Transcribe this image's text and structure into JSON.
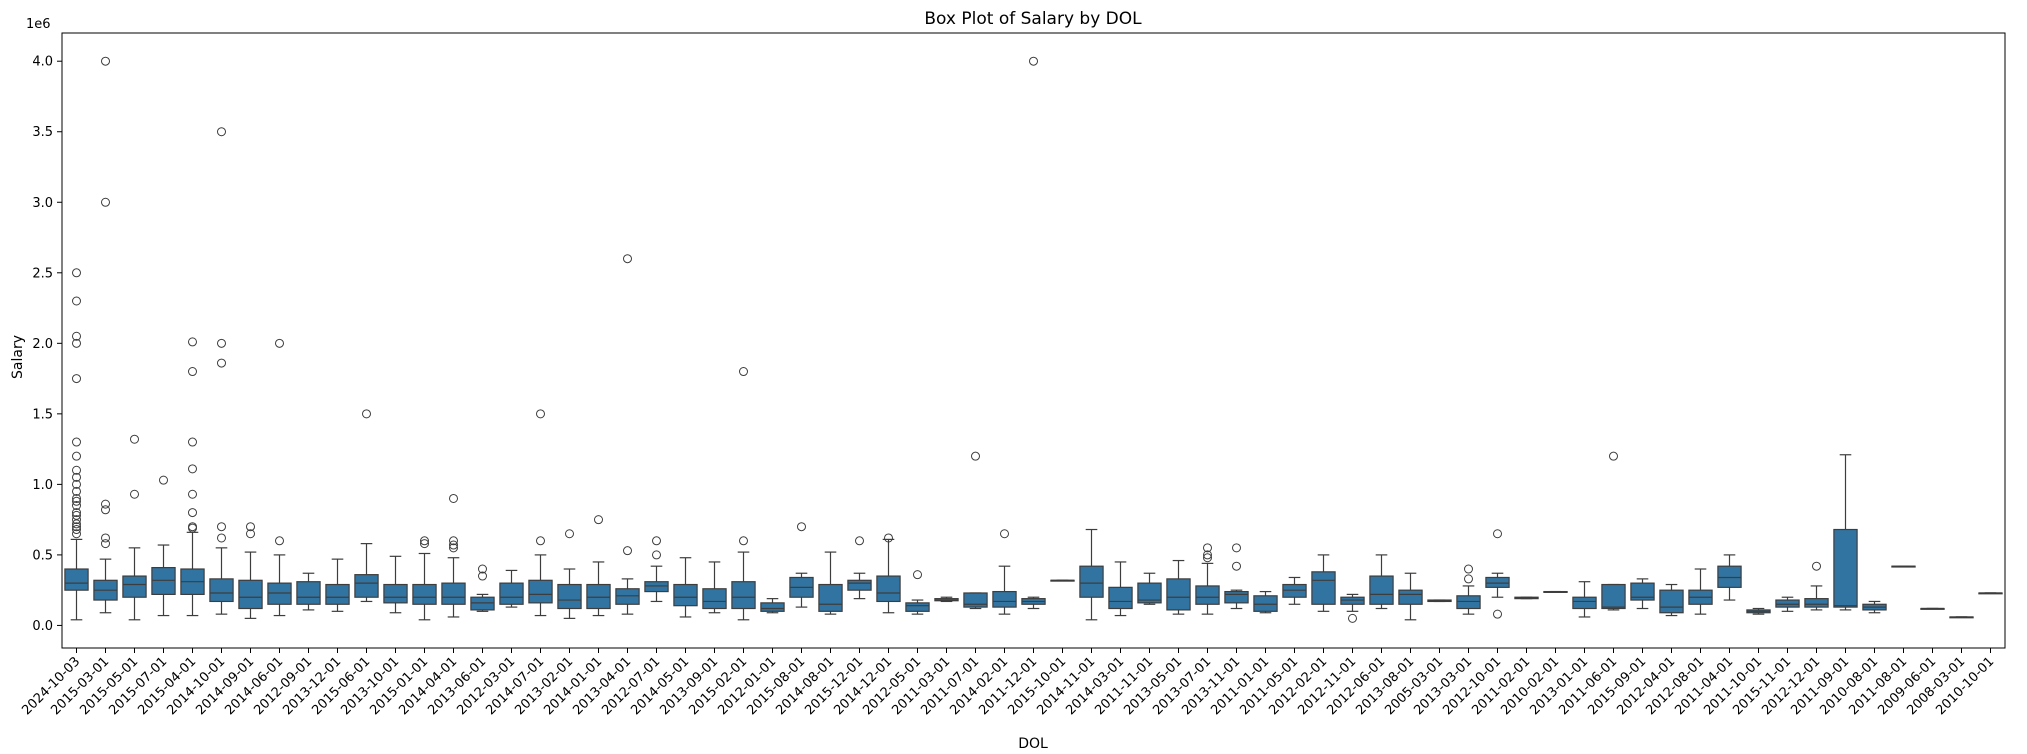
{
  "chart_data": {
    "type": "box",
    "title": "Box Plot of Salary by DOL",
    "xlabel": "DOL",
    "ylabel": "Salary",
    "y_multiplier_label": "1e6",
    "ylim": [
      -160000,
      4200000
    ],
    "yticks": [
      0.0,
      0.5,
      1.0,
      1.5,
      2.0,
      2.5,
      3.0,
      3.5,
      4.0
    ],
    "ytick_labels": [
      "0.0",
      "0.5",
      "1.0",
      "1.5",
      "2.0",
      "2.5",
      "3.0",
      "3.5",
      "4.0"
    ],
    "y_scale": 1000000,
    "box_color": "#3274a1",
    "line_color": "#3d3d3d",
    "grid": false,
    "categories": [
      {
        "label": "2024-10-03",
        "whislo": 40000,
        "q1": 250000,
        "med": 300000,
        "q3": 400000,
        "whishi": 610000,
        "fliers": [
          650000,
          680000,
          700000,
          720000,
          750000,
          780000,
          800000,
          850000,
          880000,
          900000,
          950000,
          1000000,
          1050000,
          1100000,
          1200000,
          1300000,
          1750000,
          2000000,
          2050000,
          2300000,
          2500000
        ]
      },
      {
        "label": "2015-03-01",
        "whislo": 90000,
        "q1": 180000,
        "med": 250000,
        "q3": 320000,
        "whishi": 470000,
        "fliers": [
          580000,
          620000,
          820000,
          860000,
          3000000,
          4000000
        ]
      },
      {
        "label": "2015-05-01",
        "whislo": 40000,
        "q1": 200000,
        "med": 290000,
        "q3": 350000,
        "whishi": 550000,
        "fliers": [
          930000,
          1320000
        ]
      },
      {
        "label": "2015-07-01",
        "whislo": 70000,
        "q1": 220000,
        "med": 320000,
        "q3": 410000,
        "whishi": 570000,
        "fliers": [
          1030000
        ]
      },
      {
        "label": "2015-04-01",
        "whislo": 70000,
        "q1": 220000,
        "med": 310000,
        "q3": 400000,
        "whishi": 660000,
        "fliers": [
          690000,
          700000,
          800000,
          930000,
          1110000,
          1300000,
          1800000,
          2010000
        ]
      },
      {
        "label": "2014-10-01",
        "whislo": 80000,
        "q1": 170000,
        "med": 230000,
        "q3": 330000,
        "whishi": 550000,
        "fliers": [
          620000,
          700000,
          1860000,
          2000000,
          3500000
        ]
      },
      {
        "label": "2014-09-01",
        "whislo": 50000,
        "q1": 120000,
        "med": 200000,
        "q3": 320000,
        "whishi": 520000,
        "fliers": [
          650000,
          700000
        ]
      },
      {
        "label": "2014-06-01",
        "whislo": 70000,
        "q1": 150000,
        "med": 230000,
        "q3": 300000,
        "whishi": 500000,
        "fliers": [
          600000,
          2000000
        ]
      },
      {
        "label": "2012-09-01",
        "whislo": 110000,
        "q1": 150000,
        "med": 200000,
        "q3": 310000,
        "whishi": 370000,
        "fliers": []
      },
      {
        "label": "2013-12-01",
        "whislo": 100000,
        "q1": 150000,
        "med": 200000,
        "q3": 290000,
        "whishi": 470000,
        "fliers": []
      },
      {
        "label": "2015-06-01",
        "whislo": 170000,
        "q1": 200000,
        "med": 300000,
        "q3": 360000,
        "whishi": 580000,
        "fliers": [
          1500000
        ]
      },
      {
        "label": "2013-10-01",
        "whislo": 90000,
        "q1": 160000,
        "med": 200000,
        "q3": 290000,
        "whishi": 490000,
        "fliers": []
      },
      {
        "label": "2015-01-01",
        "whislo": 40000,
        "q1": 150000,
        "med": 200000,
        "q3": 290000,
        "whishi": 510000,
        "fliers": [
          580000,
          600000
        ]
      },
      {
        "label": "2014-04-01",
        "whislo": 60000,
        "q1": 150000,
        "med": 200000,
        "q3": 300000,
        "whishi": 480000,
        "fliers": [
          550000,
          570000,
          600000,
          900000
        ]
      },
      {
        "label": "2013-06-01",
        "whislo": 100000,
        "q1": 110000,
        "med": 160000,
        "q3": 200000,
        "whishi": 220000,
        "fliers": [
          350000,
          400000
        ]
      },
      {
        "label": "2012-03-01",
        "whislo": 130000,
        "q1": 150000,
        "med": 200000,
        "q3": 300000,
        "whishi": 390000,
        "fliers": []
      },
      {
        "label": "2014-07-01",
        "whislo": 70000,
        "q1": 160000,
        "med": 220000,
        "q3": 320000,
        "whishi": 500000,
        "fliers": [
          600000,
          1500000
        ]
      },
      {
        "label": "2013-02-01",
        "whislo": 50000,
        "q1": 120000,
        "med": 180000,
        "q3": 290000,
        "whishi": 400000,
        "fliers": [
          650000
        ]
      },
      {
        "label": "2014-01-01",
        "whislo": 70000,
        "q1": 120000,
        "med": 200000,
        "q3": 290000,
        "whishi": 450000,
        "fliers": [
          750000
        ]
      },
      {
        "label": "2013-04-01",
        "whislo": 80000,
        "q1": 150000,
        "med": 210000,
        "q3": 260000,
        "whishi": 330000,
        "fliers": [
          530000,
          2600000
        ]
      },
      {
        "label": "2012-07-01",
        "whislo": 170000,
        "q1": 240000,
        "med": 280000,
        "q3": 310000,
        "whishi": 420000,
        "fliers": [
          500000,
          600000
        ]
      },
      {
        "label": "2014-05-01",
        "whislo": 60000,
        "q1": 140000,
        "med": 200000,
        "q3": 290000,
        "whishi": 480000,
        "fliers": []
      },
      {
        "label": "2013-09-01",
        "whislo": 90000,
        "q1": 120000,
        "med": 170000,
        "q3": 260000,
        "whishi": 450000,
        "fliers": []
      },
      {
        "label": "2015-02-01",
        "whislo": 40000,
        "q1": 120000,
        "med": 200000,
        "q3": 310000,
        "whishi": 520000,
        "fliers": [
          600000,
          1800000
        ]
      },
      {
        "label": "2012-01-01",
        "whislo": 90000,
        "q1": 100000,
        "med": 120000,
        "q3": 160000,
        "whishi": 190000,
        "fliers": []
      },
      {
        "label": "2015-08-01",
        "whislo": 130000,
        "q1": 200000,
        "med": 270000,
        "q3": 340000,
        "whishi": 370000,
        "fliers": [
          700000
        ]
      },
      {
        "label": "2014-08-01",
        "whislo": 80000,
        "q1": 100000,
        "med": 150000,
        "q3": 290000,
        "whishi": 520000,
        "fliers": []
      },
      {
        "label": "2015-12-01",
        "whislo": 190000,
        "q1": 250000,
        "med": 300000,
        "q3": 320000,
        "whishi": 370000,
        "fliers": [
          600000
        ]
      },
      {
        "label": "2014-12-01",
        "whislo": 90000,
        "q1": 170000,
        "med": 230000,
        "q3": 350000,
        "whishi": 610000,
        "fliers": [
          620000
        ]
      },
      {
        "label": "2012-05-01",
        "whislo": 80000,
        "q1": 100000,
        "med": 140000,
        "q3": 160000,
        "whishi": 180000,
        "fliers": [
          360000
        ]
      },
      {
        "label": "2011-03-01",
        "whislo": 170000,
        "q1": 175000,
        "med": 180000,
        "q3": 190000,
        "whishi": 200000,
        "fliers": []
      },
      {
        "label": "2011-07-01",
        "whislo": 120000,
        "q1": 130000,
        "med": 150000,
        "q3": 230000,
        "whishi": 230000,
        "fliers": [
          1200000
        ]
      },
      {
        "label": "2014-02-01",
        "whislo": 80000,
        "q1": 130000,
        "med": 170000,
        "q3": 240000,
        "whishi": 420000,
        "fliers": [
          650000
        ]
      },
      {
        "label": "2011-12-01",
        "whislo": 120000,
        "q1": 150000,
        "med": 170000,
        "q3": 190000,
        "whishi": 200000,
        "fliers": [
          4000000
        ]
      },
      {
        "label": "2015-10-01",
        "whislo": 320000,
        "q1": 320000,
        "med": 320000,
        "q3": 320000,
        "whishi": 320000,
        "fliers": []
      },
      {
        "label": "2014-11-01",
        "whislo": 40000,
        "q1": 200000,
        "med": 300000,
        "q3": 420000,
        "whishi": 680000,
        "fliers": []
      },
      {
        "label": "2014-03-01",
        "whislo": 70000,
        "q1": 120000,
        "med": 170000,
        "q3": 270000,
        "whishi": 450000,
        "fliers": []
      },
      {
        "label": "2011-11-01",
        "whislo": 150000,
        "q1": 160000,
        "med": 180000,
        "q3": 300000,
        "whishi": 370000,
        "fliers": []
      },
      {
        "label": "2013-05-01",
        "whislo": 80000,
        "q1": 110000,
        "med": 200000,
        "q3": 330000,
        "whishi": 460000,
        "fliers": []
      },
      {
        "label": "2013-07-01",
        "whislo": 80000,
        "q1": 150000,
        "med": 200000,
        "q3": 280000,
        "whishi": 440000,
        "fliers": [
          480000,
          500000,
          550000
        ]
      },
      {
        "label": "2013-11-01",
        "whislo": 120000,
        "q1": 160000,
        "med": 220000,
        "q3": 240000,
        "whishi": 250000,
        "fliers": [
          420000,
          550000
        ]
      },
      {
        "label": "2011-01-01",
        "whislo": 90000,
        "q1": 100000,
        "med": 150000,
        "q3": 210000,
        "whishi": 240000,
        "fliers": []
      },
      {
        "label": "2011-05-01",
        "whislo": 150000,
        "q1": 200000,
        "med": 250000,
        "q3": 290000,
        "whishi": 340000,
        "fliers": []
      },
      {
        "label": "2012-02-01",
        "whislo": 100000,
        "q1": 150000,
        "med": 320000,
        "q3": 380000,
        "whishi": 500000,
        "fliers": []
      },
      {
        "label": "2012-11-01",
        "whislo": 100000,
        "q1": 150000,
        "med": 180000,
        "q3": 200000,
        "whishi": 220000,
        "fliers": [
          50000
        ]
      },
      {
        "label": "2012-06-01",
        "whislo": 120000,
        "q1": 150000,
        "med": 220000,
        "q3": 350000,
        "whishi": 500000,
        "fliers": []
      },
      {
        "label": "2013-08-01",
        "whislo": 40000,
        "q1": 150000,
        "med": 220000,
        "q3": 250000,
        "whishi": 370000,
        "fliers": []
      },
      {
        "label": "2005-03-01",
        "whislo": 170000,
        "q1": 170000,
        "med": 175000,
        "q3": 180000,
        "whishi": 180000,
        "fliers": []
      },
      {
        "label": "2013-03-01",
        "whislo": 80000,
        "q1": 120000,
        "med": 170000,
        "q3": 210000,
        "whishi": 280000,
        "fliers": [
          330000,
          400000
        ]
      },
      {
        "label": "2012-10-01",
        "whislo": 200000,
        "q1": 270000,
        "med": 300000,
        "q3": 340000,
        "whishi": 370000,
        "fliers": [
          80000,
          650000
        ]
      },
      {
        "label": "2011-02-01",
        "whislo": 190000,
        "q1": 190000,
        "med": 195000,
        "q3": 200000,
        "whishi": 200000,
        "fliers": []
      },
      {
        "label": "2010-02-01",
        "whislo": 240000,
        "q1": 240000,
        "med": 240000,
        "q3": 240000,
        "whishi": 240000,
        "fliers": []
      },
      {
        "label": "2013-01-01",
        "whislo": 60000,
        "q1": 120000,
        "med": 170000,
        "q3": 200000,
        "whishi": 310000,
        "fliers": []
      },
      {
        "label": "2011-06-01",
        "whislo": 110000,
        "q1": 120000,
        "med": 130000,
        "q3": 290000,
        "whishi": 290000,
        "fliers": [
          1200000
        ]
      },
      {
        "label": "2015-09-01",
        "whislo": 120000,
        "q1": 180000,
        "med": 200000,
        "q3": 300000,
        "whishi": 330000,
        "fliers": []
      },
      {
        "label": "2012-04-01",
        "whislo": 70000,
        "q1": 90000,
        "med": 130000,
        "q3": 250000,
        "whishi": 290000,
        "fliers": []
      },
      {
        "label": "2012-08-01",
        "whislo": 80000,
        "q1": 150000,
        "med": 200000,
        "q3": 250000,
        "whishi": 400000,
        "fliers": []
      },
      {
        "label": "2011-04-01",
        "whislo": 180000,
        "q1": 270000,
        "med": 340000,
        "q3": 420000,
        "whishi": 500000,
        "fliers": []
      },
      {
        "label": "2011-10-01",
        "whislo": 80000,
        "q1": 90000,
        "med": 100000,
        "q3": 110000,
        "whishi": 120000,
        "fliers": []
      },
      {
        "label": "2015-11-01",
        "whislo": 100000,
        "q1": 130000,
        "med": 150000,
        "q3": 180000,
        "whishi": 200000,
        "fliers": []
      },
      {
        "label": "2012-12-01",
        "whislo": 110000,
        "q1": 130000,
        "med": 150000,
        "q3": 190000,
        "whishi": 280000,
        "fliers": [
          420000
        ]
      },
      {
        "label": "2011-09-01",
        "whislo": 110000,
        "q1": 130000,
        "med": 140000,
        "q3": 680000,
        "whishi": 1210000,
        "fliers": []
      },
      {
        "label": "2010-08-01",
        "whislo": 90000,
        "q1": 110000,
        "med": 130000,
        "q3": 150000,
        "whishi": 170000,
        "fliers": []
      },
      {
        "label": "2011-08-01",
        "whislo": 420000,
        "q1": 420000,
        "med": 420000,
        "q3": 420000,
        "whishi": 420000,
        "fliers": []
      },
      {
        "label": "2009-06-01",
        "whislo": 120000,
        "q1": 120000,
        "med": 120000,
        "q3": 120000,
        "whishi": 120000,
        "fliers": []
      },
      {
        "label": "2008-03-01",
        "whislo": 60000,
        "q1": 60000,
        "med": 60000,
        "q3": 60000,
        "whishi": 60000,
        "fliers": []
      },
      {
        "label": "2010-10-01",
        "whislo": 230000,
        "q1": 230000,
        "med": 230000,
        "q3": 230000,
        "whishi": 230000,
        "fliers": []
      }
    ]
  }
}
